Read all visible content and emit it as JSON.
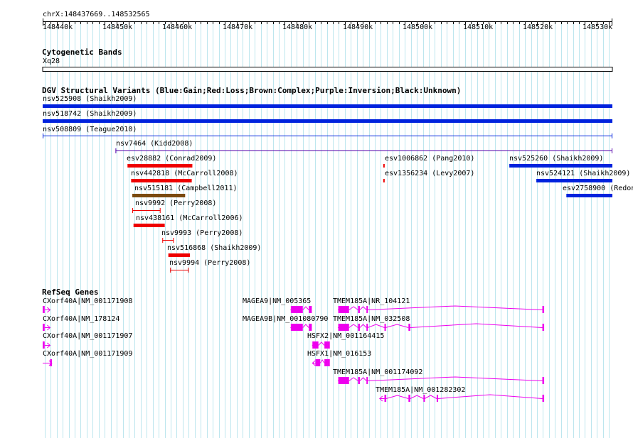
{
  "region": "chrX:148437669..148532565",
  "ruler": {
    "ticks": [
      "148440k",
      "148450k",
      "148460k",
      "148470k",
      "148480k",
      "148490k",
      "148500k",
      "148510k",
      "148520k",
      "148530k"
    ],
    "tick_bp": [
      148440000,
      148450000,
      148460000,
      148470000,
      148480000,
      148490000,
      148500000,
      148510000,
      148520000,
      148530000
    ],
    "start_bp": 148437669,
    "end_bp": 148532565
  },
  "tracks": {
    "cytobands": {
      "title": "Cytogenetic Bands",
      "band": "Xq28"
    },
    "dgv": {
      "title": "DGV Structural Variants (Blue:Gain;Red:Loss;Brown:Complex;Purple:Inversion;Black:Unknown)",
      "colors": {
        "gain": "#0022dd",
        "loss": "#ee0000",
        "complex": "#7a4a10",
        "inversion": "#5500aa",
        "unknown": "#000000"
      },
      "features": [
        {
          "label": "nsv525908 (Shaikh2009)",
          "type": "gain",
          "start": 148437669,
          "end": 148532565
        },
        {
          "label": "nsv518742 (Shaikh2009)",
          "type": "gain",
          "start": 148437669,
          "end": 148532565
        },
        {
          "label": "nsv508809 (Teague2010)",
          "type": "gain",
          "start": 148437669,
          "end": 148532565
        },
        {
          "label": "nsv7464 (Kidd2008)",
          "type": "inversion",
          "start": 148449800,
          "end": 148532565
        },
        {
          "label": "esv28882 (Conrad2009)",
          "type": "loss",
          "start": 148451800,
          "end": 148462600
        },
        {
          "label": "nsv442818 (McCarroll2008)",
          "type": "loss",
          "start": 148452400,
          "end": 148462500
        },
        {
          "label": "nsv515181 (Campbell2011)",
          "type": "complex",
          "start": 148452600,
          "end": 148461400
        },
        {
          "label": "nsv9992 (Perry2008)",
          "type": "loss",
          "start": 148452600,
          "end": 148457300
        },
        {
          "label": "nsv438161 (McCarroll2006)",
          "type": "loss",
          "start": 148452800,
          "end": 148458000
        },
        {
          "label": "nsv9993 (Perry2008)",
          "type": "loss",
          "start": 148457600,
          "end": 148459500
        },
        {
          "label": "nsv516868 (Shaikh2009)",
          "type": "loss",
          "start": 148458600,
          "end": 148462200
        },
        {
          "label": "nsv9994 (Perry2008)",
          "type": "loss",
          "start": 148458900,
          "end": 148462000
        },
        {
          "label": "esv1006862 (Pang2010)",
          "type": "loss",
          "start": 148494400,
          "end": 148494600
        },
        {
          "label": "esv1356234 (Levy2007)",
          "type": "loss",
          "start": 148494400,
          "end": 148494600
        },
        {
          "label": "nsv525260 (Shaikh2009)",
          "type": "gain",
          "start": 148515400,
          "end": 148532565
        },
        {
          "label": "nsv524121 (Shaikh2009)",
          "type": "gain",
          "start": 148519900,
          "end": 148532565
        },
        {
          "label": "esv2758900 (Redon",
          "type": "gain",
          "start": 148524900,
          "end": 148532565
        }
      ]
    },
    "refseq": {
      "title": "RefSeq Genes",
      "color": "#ee00ee",
      "genes": [
        {
          "label": "CXorf40A|NM_001171908",
          "strand": "+",
          "start": 148437669,
          "end": 148438900,
          "exons": [
            [
              148437669,
              148438000
            ]
          ]
        },
        {
          "label": "CXorf40A|NM_178124",
          "strand": "+",
          "start": 148437669,
          "end": 148438900,
          "exons": [
            [
              148437669,
              148438000
            ]
          ]
        },
        {
          "label": "CXorf40A|NM_001171907",
          "strand": "+",
          "start": 148437669,
          "end": 148438900,
          "exons": [
            [
              148437669,
              148438000
            ]
          ]
        },
        {
          "label": "CXorf40A|NM_001171909",
          "strand": "+",
          "start": 148437669,
          "end": 148439200,
          "exons": [
            [
              148438900,
              148439200
            ]
          ]
        },
        {
          "label": "MAGEA9|NM_005365",
          "strand": "-",
          "start": 148479000,
          "end": 148482500,
          "exons": [
            [
              148479000,
              148481000
            ],
            [
              148482000,
              148482500
            ]
          ]
        },
        {
          "label": "MAGEA9B|NM_001080790",
          "strand": "-",
          "start": 148479000,
          "end": 148482500,
          "exons": [
            [
              148479000,
              148481000
            ],
            [
              148482000,
              148482500
            ]
          ]
        },
        {
          "label": "TMEM185A|NR_104121",
          "strand": "-",
          "start": 148486900,
          "end": 148521200,
          "exons": [
            [
              148486900,
              148488700
            ],
            [
              148490200,
              148490500
            ],
            [
              148491600,
              148491800
            ],
            [
              148520900,
              148521200
            ]
          ]
        },
        {
          "label": "TMEM185A|NM_032508",
          "strand": "-",
          "start": 148486900,
          "end": 148521200,
          "exons": [
            [
              148486900,
              148488700
            ],
            [
              148490200,
              148490500
            ],
            [
              148491600,
              148491800
            ],
            [
              148494600,
              148494800
            ],
            [
              148498600,
              148498900
            ],
            [
              148520900,
              148521200
            ]
          ]
        },
        {
          "label": "HSFX2|NM_001164415",
          "strand": "-",
          "start": 148482600,
          "end": 148485500,
          "exons": [
            [
              148482600,
              148483600
            ],
            [
              148484600,
              148485500
            ]
          ]
        },
        {
          "label": "HSFX1|NM_016153",
          "strand": "-",
          "start": 148482600,
          "end": 148485500,
          "exons": [
            [
              148483100,
              148483900
            ],
            [
              148484600,
              148485500
            ]
          ]
        },
        {
          "label": "TMEM185A|NM_001174092",
          "strand": "-",
          "start": 148486900,
          "end": 148521200,
          "exons": [
            [
              148486900,
              148488700
            ],
            [
              148490200,
              148490500
            ],
            [
              148491600,
              148491800
            ],
            [
              148520900,
              148521200
            ]
          ]
        },
        {
          "label": "TMEM185A|NM_001282302",
          "strand": "-",
          "start": 148493800,
          "end": 148521200,
          "exons": [
            [
              148494600,
              148494900
            ],
            [
              148498600,
              148498900
            ],
            [
              148501100,
              148501300
            ],
            [
              148503300,
              148503500
            ],
            [
              148520900,
              148521200
            ]
          ]
        }
      ]
    }
  }
}
